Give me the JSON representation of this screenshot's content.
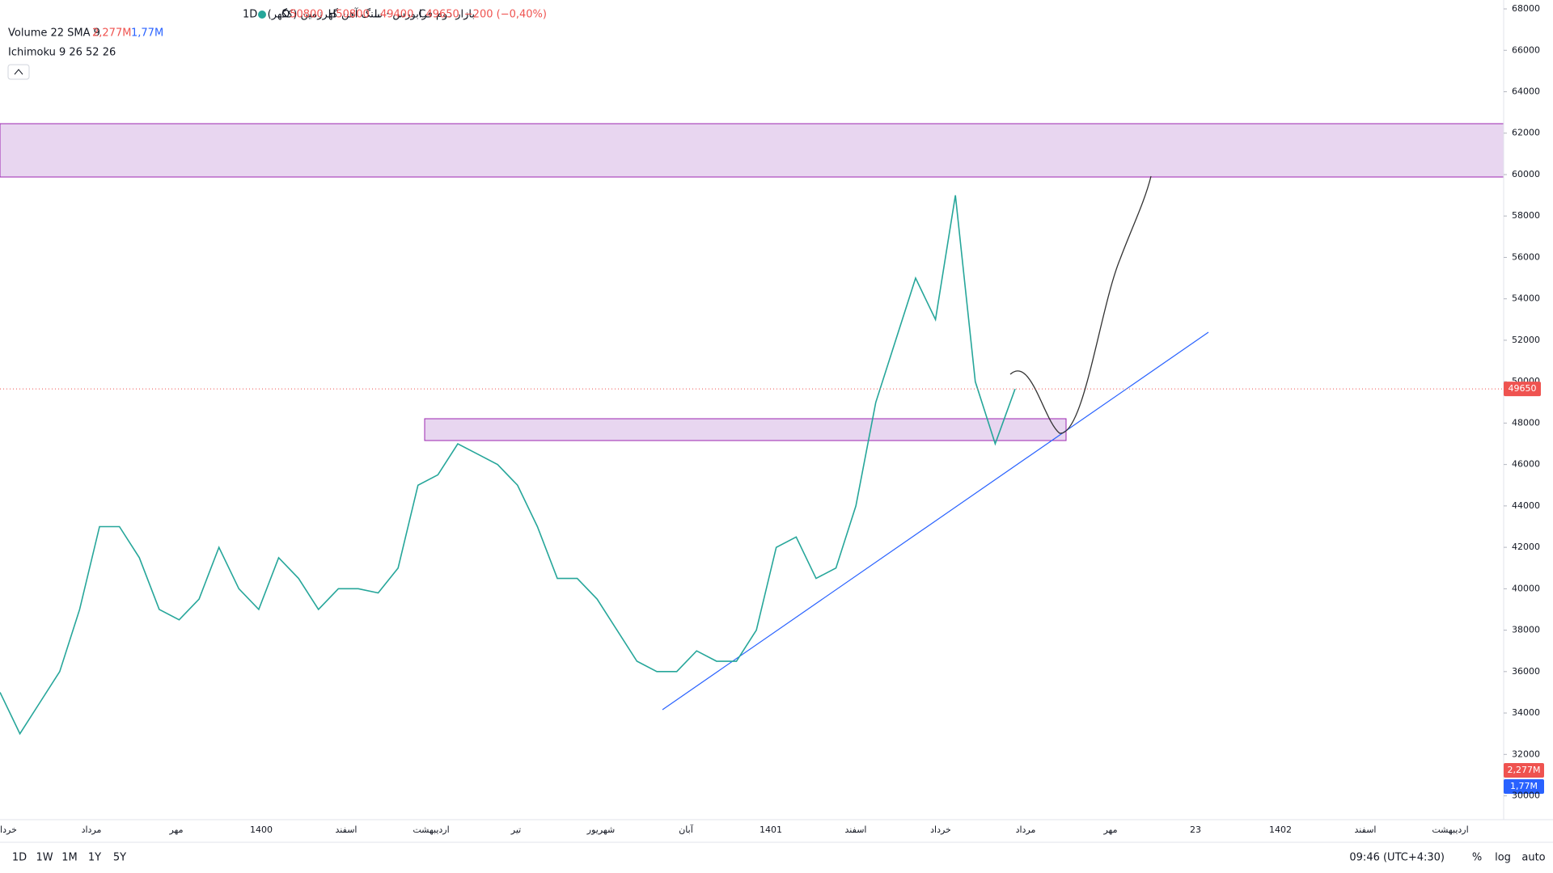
{
  "header": {
    "symbol_title": "بازار دوم فرابورس · سنگ آهن گهرزمین (کگهر) · 1D",
    "ohlc": [
      {
        "label": "O",
        "value": "50800"
      },
      {
        "label": "H",
        "value": "50800"
      },
      {
        "label": "L",
        "value": "49400"
      },
      {
        "label": "C",
        "value": "49650"
      }
    ],
    "change": "−200 (−0,40%)",
    "volume_indicator": "Volume 22 SMA 9",
    "volume_value": "2,277M",
    "volume_sma": "1,77M",
    "ichimoku_indicator": "Ichimoku 9 26 52 26"
  },
  "chart_data": {
    "type": "line",
    "color": "#26a69a",
    "values": [
      35000,
      33000,
      34500,
      36000,
      39000,
      43000,
      43000,
      41500,
      39000,
      38500,
      39500,
      42000,
      40000,
      39000,
      41500,
      40500,
      39000,
      40000,
      40000,
      39800,
      41000,
      45000,
      45500,
      47000,
      46500,
      46000,
      45000,
      43000,
      40500,
      40500,
      39500,
      38000,
      36500,
      36000,
      36000,
      37000,
      36500,
      36500,
      38000,
      42000,
      42500,
      40500,
      41000,
      44000,
      49000,
      52000,
      55000,
      53000,
      59000,
      50000,
      47000,
      49650
    ],
    "ylim": [
      28850,
      68430
    ],
    "yticks": [
      30000,
      32000,
      34000,
      36000,
      38000,
      40000,
      42000,
      44000,
      46000,
      48000,
      50000,
      52000,
      54000,
      56000,
      58000,
      60000,
      62000,
      64000,
      66000,
      68000
    ],
    "last_price": 49650,
    "time_labels": [
      "خرداد",
      "مرداد",
      "مهر",
      "1400",
      "اسفند",
      "اردیبهشت",
      "تیر",
      "شهریور",
      "آبان",
      "1401",
      "اسفند",
      "خرداد",
      "مرداد",
      "مهر",
      "23",
      "1402",
      "اسفند",
      "اردیبهشت"
    ]
  },
  "toolbar": {
    "intervals": [
      "1D",
      "1W",
      "1M",
      "1Y",
      "5Y"
    ],
    "clock": "09:46 (UTC+4:30)",
    "percent": "%",
    "log": "log",
    "auto": "auto"
  }
}
